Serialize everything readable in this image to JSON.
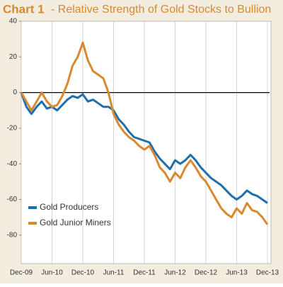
{
  "chart_data": {
    "type": "line",
    "title_label": "Chart 1",
    "title": "- Relative Strength of Gold Stocks to Bullion",
    "x": [
      "Dec-09",
      "Jan-10",
      "Feb-10",
      "Mar-10",
      "Apr-10",
      "May-10",
      "Jun-10",
      "Jul-10",
      "Aug-10",
      "Sep-10",
      "Oct-10",
      "Nov-10",
      "Dec-10",
      "Jan-11",
      "Feb-11",
      "Mar-11",
      "Apr-11",
      "May-11",
      "Jun-11",
      "Jul-11",
      "Aug-11",
      "Sep-11",
      "Oct-11",
      "Nov-11",
      "Dec-11",
      "Jan-12",
      "Feb-12",
      "Mar-12",
      "Apr-12",
      "May-12",
      "Jun-12",
      "Jul-12",
      "Aug-12",
      "Sep-12",
      "Oct-12",
      "Nov-12",
      "Dec-12",
      "Jan-13",
      "Feb-13",
      "Mar-13",
      "Apr-13",
      "May-13",
      "Jun-13",
      "Jul-13",
      "Aug-13",
      "Sep-13",
      "Oct-13",
      "Nov-13",
      "Dec-13"
    ],
    "xticks": [
      "Dec-09",
      "Jun-10",
      "Dec-10",
      "Jun-11",
      "Dec-11",
      "Jun-12",
      "Dec-12",
      "Jun-13",
      "Dec-13"
    ],
    "series": [
      {
        "name": "Gold Producers",
        "color": "#1f6fad",
        "values": [
          0,
          -8,
          -12,
          -8,
          -5,
          -9,
          -8,
          -10,
          -7,
          -4,
          -2,
          -3,
          -1,
          -5,
          -4,
          -6,
          -8,
          -8,
          -10,
          -15,
          -18,
          -22,
          -25,
          -26,
          -27,
          -28,
          -33,
          -37,
          -40,
          -43,
          -38,
          -40,
          -38,
          -35,
          -38,
          -42,
          -45,
          -48,
          -50,
          -52,
          -55,
          -58,
          -60,
          -58,
          -55,
          -57,
          -58,
          -60,
          -62
        ]
      },
      {
        "name": "Gold Junior Miners",
        "color": "#d9892e",
        "values": [
          0,
          -5,
          -10,
          -5,
          0,
          -5,
          -8,
          -7,
          -2,
          5,
          15,
          20,
          28,
          18,
          12,
          10,
          8,
          0,
          -12,
          -18,
          -22,
          -25,
          -27,
          -30,
          -32,
          -30,
          -35,
          -42,
          -45,
          -50,
          -45,
          -48,
          -42,
          -38,
          -42,
          -47,
          -50,
          -55,
          -60,
          -65,
          -68,
          -70,
          -65,
          -68,
          -62,
          -66,
          -67,
          -70,
          -74
        ]
      }
    ],
    "ylim": [
      -96,
      40
    ],
    "yticks": [
      40,
      20,
      0,
      -20,
      -40,
      -60,
      -80
    ],
    "zero_line": true,
    "grid": true,
    "legend": "left"
  }
}
